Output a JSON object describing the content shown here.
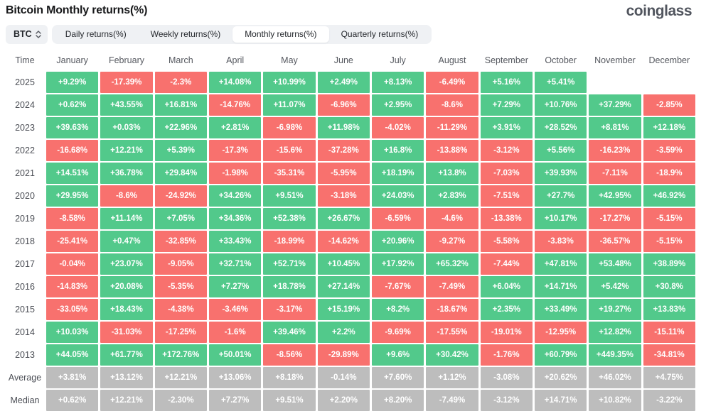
{
  "header": {
    "title": "Bitcoin Monthly returns(%)",
    "logo": "coinglass"
  },
  "controls": {
    "coin_selector": "BTC",
    "coin_selector_icon": "up-down-chevrons",
    "tabs": [
      {
        "label": "Daily returns(%)",
        "active": false
      },
      {
        "label": "Weekly returns(%)",
        "active": false
      },
      {
        "label": "Monthly returns(%)",
        "active": true
      },
      {
        "label": "Quarterly returns(%)",
        "active": false
      }
    ]
  },
  "colors": {
    "positive": "#52c98b",
    "negative": "#f8716e",
    "neutral": "#bdbdbd"
  },
  "table": {
    "columns": [
      "Time",
      "January",
      "February",
      "March",
      "April",
      "May",
      "June",
      "July",
      "August",
      "September",
      "October",
      "November",
      "December"
    ],
    "rows": [
      {
        "label": "2025",
        "neutral": false,
        "values": [
          "+9.29%",
          "-17.39%",
          "-2.3%",
          "+14.08%",
          "+10.99%",
          "+2.49%",
          "+8.13%",
          "-6.49%",
          "+5.16%",
          "+5.41%",
          "",
          ""
        ]
      },
      {
        "label": "2024",
        "neutral": false,
        "values": [
          "+0.62%",
          "+43.55%",
          "+16.81%",
          "-14.76%",
          "+11.07%",
          "-6.96%",
          "+2.95%",
          "-8.6%",
          "+7.29%",
          "+10.76%",
          "+37.29%",
          "-2.85%"
        ]
      },
      {
        "label": "2023",
        "neutral": false,
        "values": [
          "+39.63%",
          "+0.03%",
          "+22.96%",
          "+2.81%",
          "-6.98%",
          "+11.98%",
          "-4.02%",
          "-11.29%",
          "+3.91%",
          "+28.52%",
          "+8.81%",
          "+12.18%"
        ]
      },
      {
        "label": "2022",
        "neutral": false,
        "values": [
          "-16.68%",
          "+12.21%",
          "+5.39%",
          "-17.3%",
          "-15.6%",
          "-37.28%",
          "+16.8%",
          "-13.88%",
          "-3.12%",
          "+5.56%",
          "-16.23%",
          "-3.59%"
        ]
      },
      {
        "label": "2021",
        "neutral": false,
        "values": [
          "+14.51%",
          "+36.78%",
          "+29.84%",
          "-1.98%",
          "-35.31%",
          "-5.95%",
          "+18.19%",
          "+13.8%",
          "-7.03%",
          "+39.93%",
          "-7.11%",
          "-18.9%"
        ]
      },
      {
        "label": "2020",
        "neutral": false,
        "values": [
          "+29.95%",
          "-8.6%",
          "-24.92%",
          "+34.26%",
          "+9.51%",
          "-3.18%",
          "+24.03%",
          "+2.83%",
          "-7.51%",
          "+27.7%",
          "+42.95%",
          "+46.92%"
        ]
      },
      {
        "label": "2019",
        "neutral": false,
        "values": [
          "-8.58%",
          "+11.14%",
          "+7.05%",
          "+34.36%",
          "+52.38%",
          "+26.67%",
          "-6.59%",
          "-4.6%",
          "-13.38%",
          "+10.17%",
          "-17.27%",
          "-5.15%"
        ]
      },
      {
        "label": "2018",
        "neutral": false,
        "values": [
          "-25.41%",
          "+0.47%",
          "-32.85%",
          "+33.43%",
          "-18.99%",
          "-14.62%",
          "+20.96%",
          "-9.27%",
          "-5.58%",
          "-3.83%",
          "-36.57%",
          "-5.15%"
        ]
      },
      {
        "label": "2017",
        "neutral": false,
        "values": [
          "-0.04%",
          "+23.07%",
          "-9.05%",
          "+32.71%",
          "+52.71%",
          "+10.45%",
          "+17.92%",
          "+65.32%",
          "-7.44%",
          "+47.81%",
          "+53.48%",
          "+38.89%"
        ]
      },
      {
        "label": "2016",
        "neutral": false,
        "values": [
          "-14.83%",
          "+20.08%",
          "-5.35%",
          "+7.27%",
          "+18.78%",
          "+27.14%",
          "-7.67%",
          "-7.49%",
          "+6.04%",
          "+14.71%",
          "+5.42%",
          "+30.8%"
        ]
      },
      {
        "label": "2015",
        "neutral": false,
        "values": [
          "-33.05%",
          "+18.43%",
          "-4.38%",
          "-3.46%",
          "-3.17%",
          "+15.19%",
          "+8.2%",
          "-18.67%",
          "+2.35%",
          "+33.49%",
          "+19.27%",
          "+13.83%"
        ]
      },
      {
        "label": "2014",
        "neutral": false,
        "values": [
          "+10.03%",
          "-31.03%",
          "-17.25%",
          "-1.6%",
          "+39.46%",
          "+2.2%",
          "-9.69%",
          "-17.55%",
          "-19.01%",
          "-12.95%",
          "+12.82%",
          "-15.11%"
        ]
      },
      {
        "label": "2013",
        "neutral": false,
        "values": [
          "+44.05%",
          "+61.77%",
          "+172.76%",
          "+50.01%",
          "-8.56%",
          "-29.89%",
          "+9.6%",
          "+30.42%",
          "-1.76%",
          "+60.79%",
          "+449.35%",
          "-34.81%"
        ]
      },
      {
        "label": "Average",
        "neutral": true,
        "values": [
          "+3.81%",
          "+13.12%",
          "+12.21%",
          "+13.06%",
          "+8.18%",
          "-0.14%",
          "+7.60%",
          "+1.12%",
          "-3.08%",
          "+20.62%",
          "+46.02%",
          "+4.75%"
        ]
      },
      {
        "label": "Median",
        "neutral": true,
        "values": [
          "+0.62%",
          "+12.21%",
          "-2.30%",
          "+7.27%",
          "+9.51%",
          "+2.20%",
          "+8.20%",
          "-7.49%",
          "-3.12%",
          "+14.71%",
          "+10.82%",
          "-3.22%"
        ]
      }
    ]
  }
}
